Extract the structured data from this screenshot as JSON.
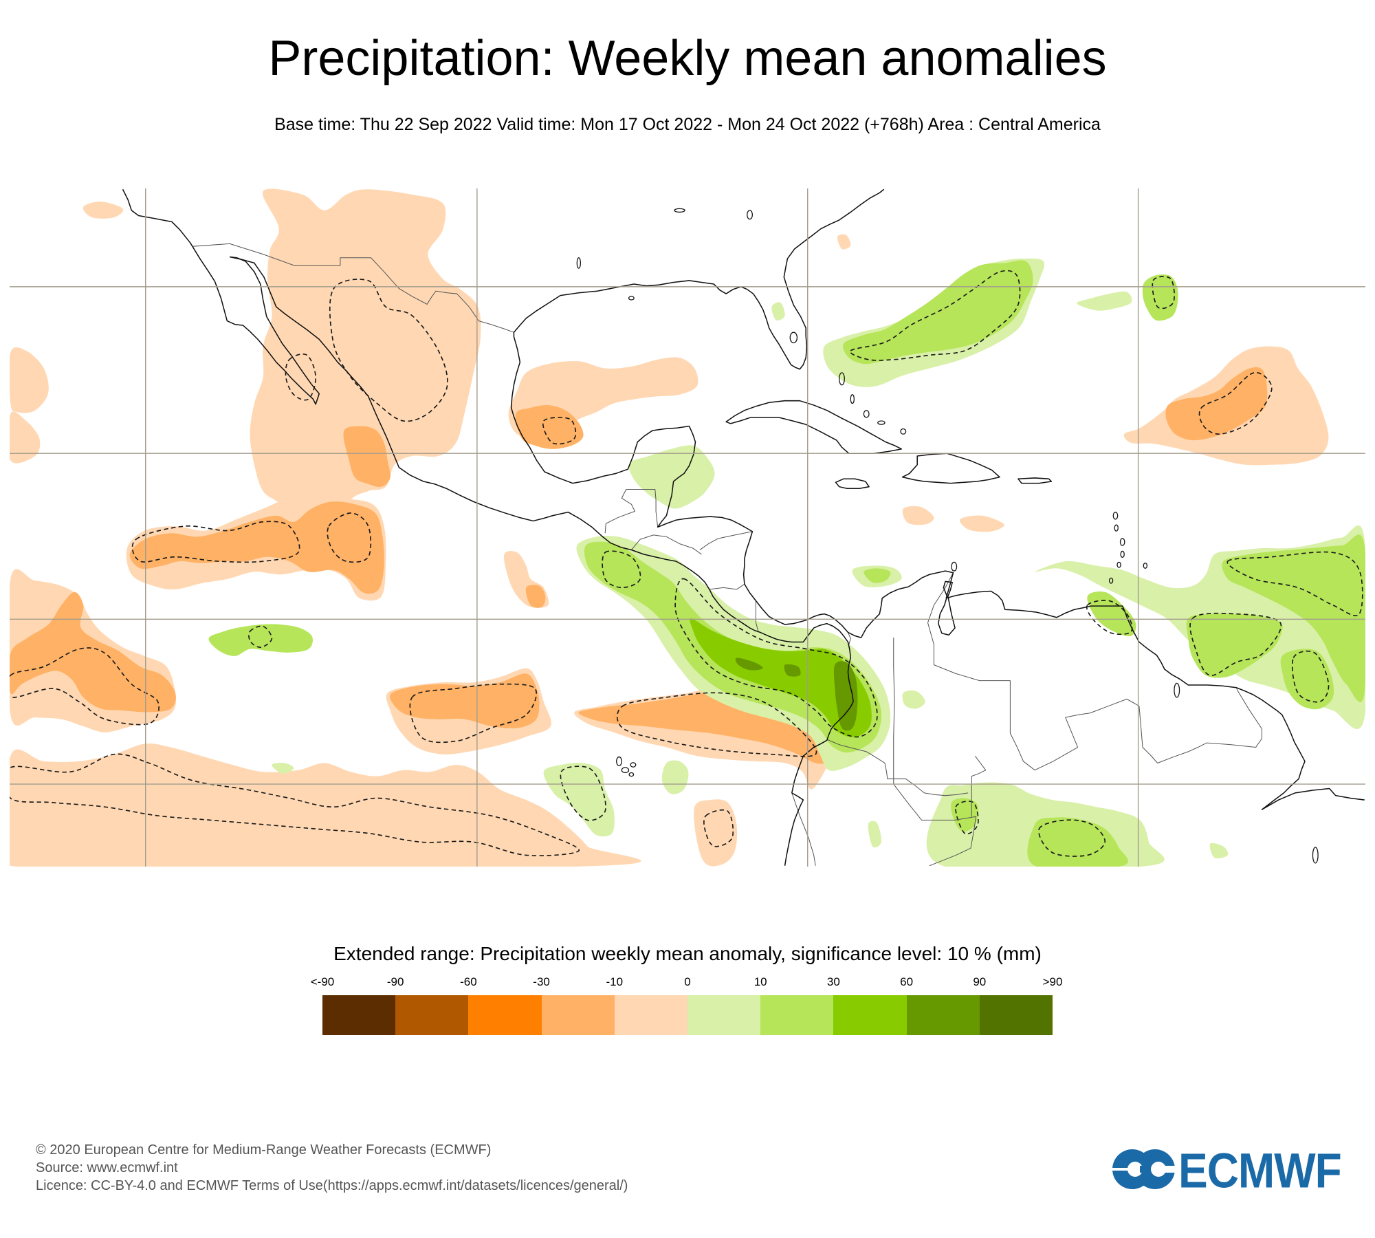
{
  "header": {
    "title": "Precipitation: Weekly mean anomalies",
    "subtitle": "Base time: Thu 22 Sep 2022 Valid time: Mon 17 Oct 2022 - Mon 24 Oct 2022 (+768h) Area : Central America"
  },
  "legend": {
    "title": "Extended range: Precipitation weekly mean anomaly, significance level: 10 % (mm)",
    "labels": [
      "<-90",
      "-90",
      "-60",
      "-30",
      "-10",
      "0",
      "10",
      "30",
      "60",
      "90",
      ">90"
    ],
    "colors": [
      "#5b2d00",
      "#b05800",
      "#ff8000",
      "#ffb266",
      "#ffd8b3",
      "#d9f0a8",
      "#b6e55a",
      "#88cc00",
      "#669900",
      "#537300"
    ]
  },
  "map": {
    "coastline_color": "#111111",
    "contour_color": "#1a1a1a",
    "gridline_color": "#a39c8c"
  },
  "footer": {
    "copyright": "© 2020 European Centre for Medium-Range Weather Forecasts (ECMWF)",
    "source": "Source: www.ecmwf.int",
    "licence": "Licence: CC-BY-4.0 and ECMWF Terms of Use(https://apps.ecmwf.int/datasets/licences/general/)"
  },
  "logo": {
    "text": "ECMWF",
    "color": "#1b6aa8"
  }
}
